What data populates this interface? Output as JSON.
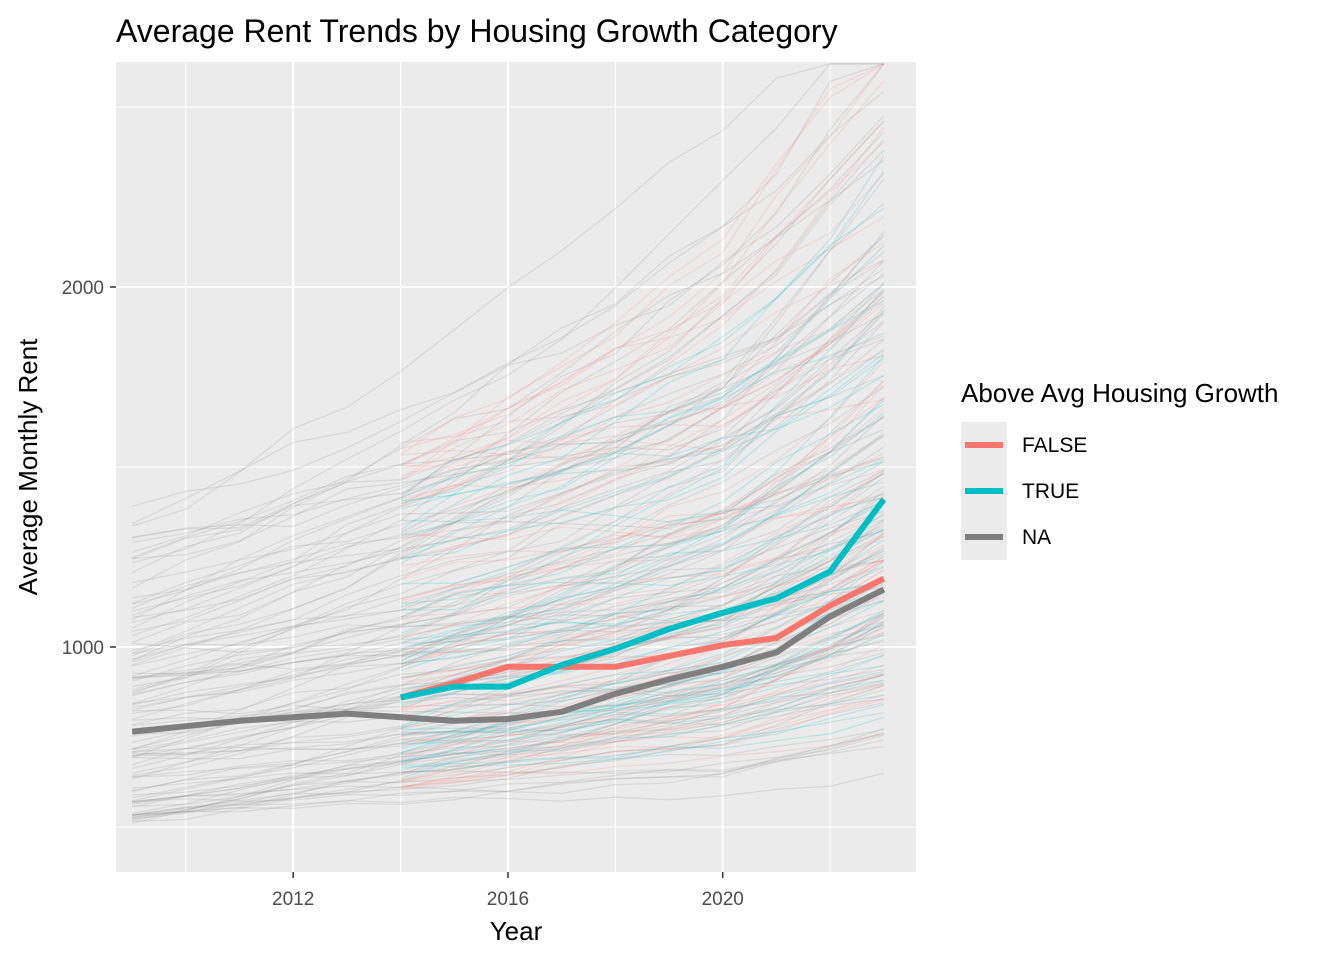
{
  "chart_data": {
    "type": "line",
    "title": "Average Rent Trends by Housing Growth Category",
    "xlabel": "Year",
    "ylabel": "Average Monthly Rent",
    "xlim": [
      2008.7,
      2023.6
    ],
    "ylim": [
      375,
      2625
    ],
    "x_ticks": [
      2012,
      2016,
      2020
    ],
    "y_ticks": [
      1000,
      2000
    ],
    "grid": true,
    "legend": {
      "title": "Above Avg Housing Growth",
      "position": "right",
      "entries": [
        {
          "label": "FALSE",
          "color": "#F8766D"
        },
        {
          "label": "TRUE",
          "color": "#00BFC4"
        },
        {
          "label": "NA",
          "color": "#7F7F7F"
        }
      ]
    },
    "series": [
      {
        "name": "FALSE",
        "color": "#F8766D",
        "x": [
          2014,
          2015,
          2016,
          2017,
          2018,
          2019,
          2020,
          2021,
          2022,
          2023
        ],
        "values": [
          860,
          900,
          945,
          945,
          945,
          975,
          1005,
          1025,
          1115,
          1190
        ]
      },
      {
        "name": "TRUE",
        "color": "#00BFC4",
        "x": [
          2014,
          2015,
          2016,
          2017,
          2018,
          2019,
          2020,
          2021,
          2022,
          2023
        ],
        "values": [
          860,
          890,
          890,
          950,
          995,
          1050,
          1095,
          1135,
          1210,
          1410
        ]
      },
      {
        "name": "NA",
        "color": "#7F7F7F",
        "x": [
          2009,
          2010,
          2011,
          2012,
          2013,
          2014,
          2015,
          2016,
          2017,
          2018,
          2019,
          2020,
          2021,
          2022,
          2023
        ],
        "values": [
          765,
          780,
          795,
          805,
          815,
          805,
          795,
          800,
          820,
          870,
          910,
          945,
          985,
          1085,
          1160
        ]
      }
    ],
    "background_lines": "many faint per-region rent trajectories (grey 2009-2023, red and teal 2014-2023)"
  }
}
